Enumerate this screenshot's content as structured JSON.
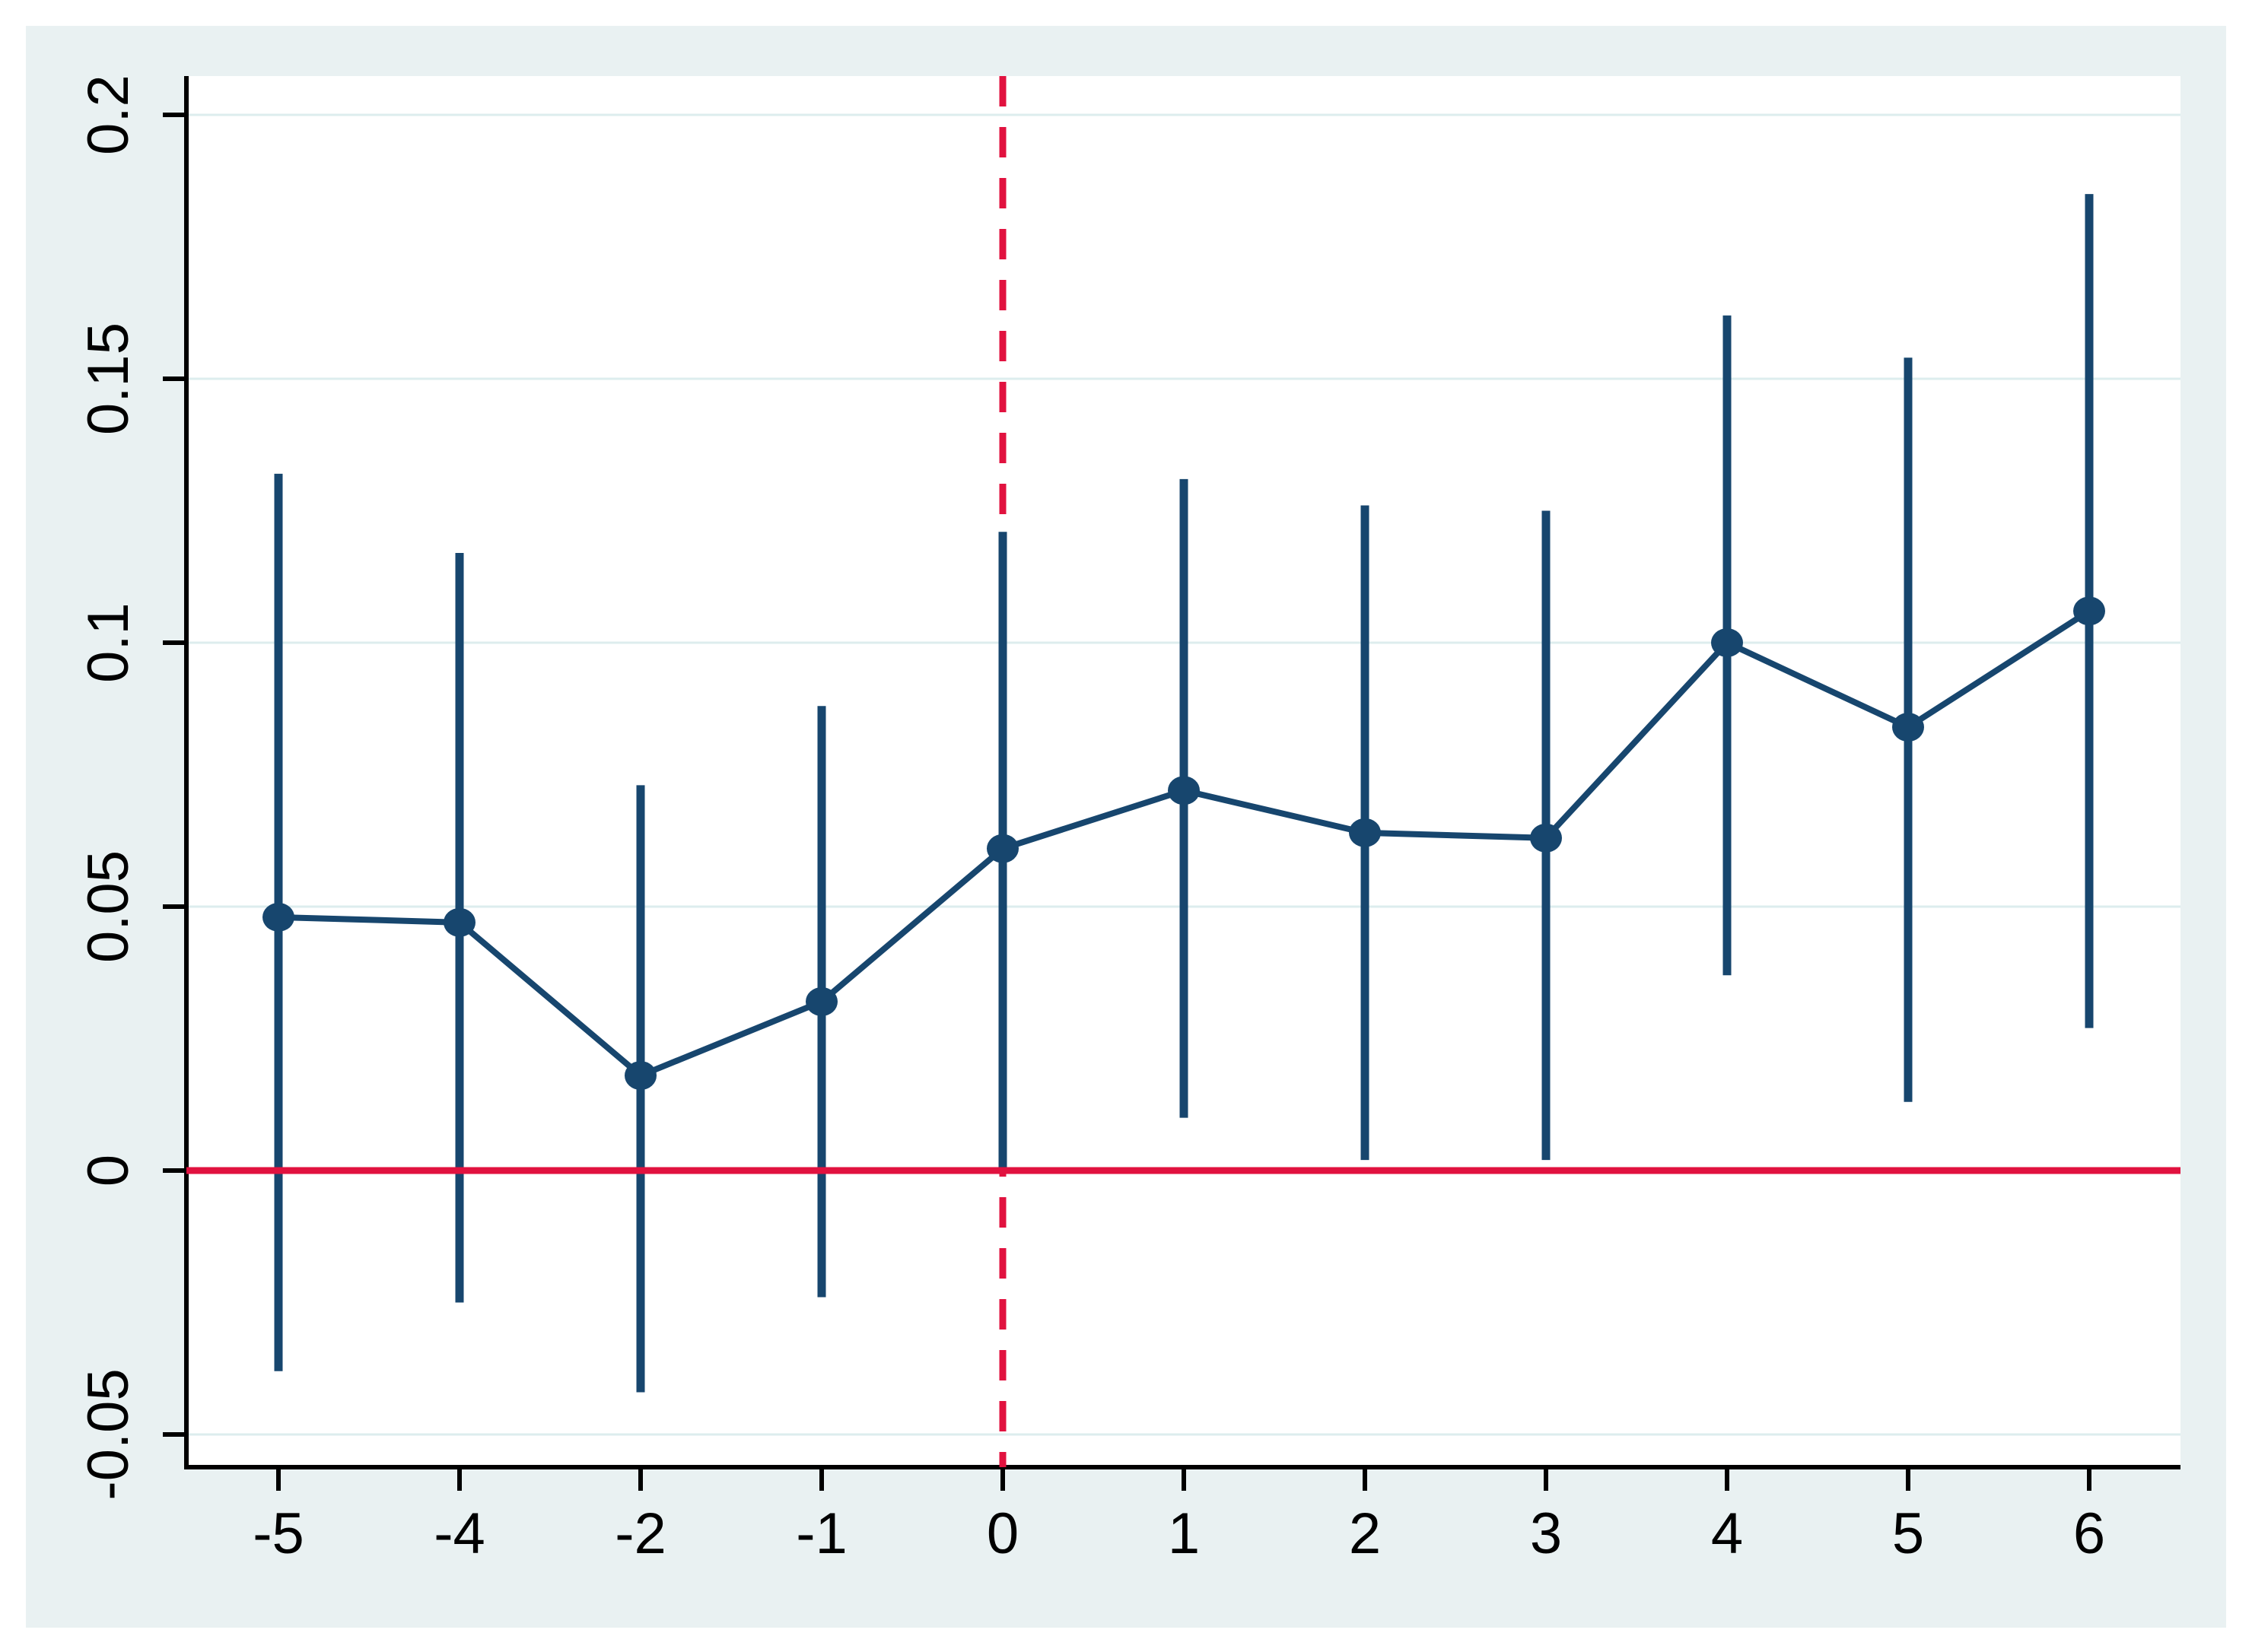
{
  "figure": {
    "description": "Event-study plot with point estimates and confidence interval whiskers",
    "colors": {
      "figure_background": "#e9f1f2",
      "plot_background": "#ffffff",
      "gridline": "#ddedee",
      "axis": "#000000",
      "series_navy": "#17466e",
      "reference_red": "#e1123f",
      "label_text": "#000000"
    }
  },
  "chart_data": {
    "type": "line",
    "subtype": "event-study-estimates-with-95ci-whiskers",
    "title": "",
    "xlabel": "",
    "ylabel": "",
    "grid": true,
    "legend": "none",
    "x_tick_labels": [
      "-5",
      "-4",
      "-2",
      "-1",
      "0",
      "1",
      "2",
      "3",
      "4",
      "5",
      "6"
    ],
    "y_tick_labels": [
      "0.2",
      "0.15",
      "0.1",
      "0.05",
      "0",
      "-0.05"
    ],
    "y_ticks": [
      0.2,
      0.15,
      0.1,
      0.05,
      0,
      -0.05
    ],
    "ylim": [
      -0.056,
      0.208
    ],
    "series": [
      {
        "name": "point-estimate-with-ci",
        "points": [
          {
            "x": "-5",
            "estimate": 0.048,
            "ci_low": -0.038,
            "ci_high": 0.132
          },
          {
            "x": "-4",
            "estimate": 0.047,
            "ci_low": -0.025,
            "ci_high": 0.117
          },
          {
            "x": "-2",
            "estimate": 0.018,
            "ci_low": -0.042,
            "ci_high": 0.073
          },
          {
            "x": "-1",
            "estimate": 0.032,
            "ci_low": -0.024,
            "ci_high": 0.088
          },
          {
            "x": "0",
            "estimate": 0.061,
            "ci_low": 0.0,
            "ci_high": 0.121
          },
          {
            "x": "1",
            "estimate": 0.072,
            "ci_low": 0.01,
            "ci_high": 0.131
          },
          {
            "x": "2",
            "estimate": 0.064,
            "ci_low": 0.002,
            "ci_high": 0.126
          },
          {
            "x": "3",
            "estimate": 0.063,
            "ci_low": 0.002,
            "ci_high": 0.125
          },
          {
            "x": "4",
            "estimate": 0.1,
            "ci_low": 0.037,
            "ci_high": 0.162
          },
          {
            "x": "5",
            "estimate": 0.084,
            "ci_low": 0.013,
            "ci_high": 0.154
          },
          {
            "x": "6",
            "estimate": 0.106,
            "ci_low": 0.027,
            "ci_high": 0.185
          }
        ]
      }
    ],
    "reference_lines": [
      {
        "orientation": "horizontal",
        "value": 0,
        "style": "solid",
        "color": "#e1123f"
      },
      {
        "orientation": "vertical",
        "at_x_label": "0",
        "style": "dashed",
        "color": "#e1123f"
      }
    ]
  }
}
